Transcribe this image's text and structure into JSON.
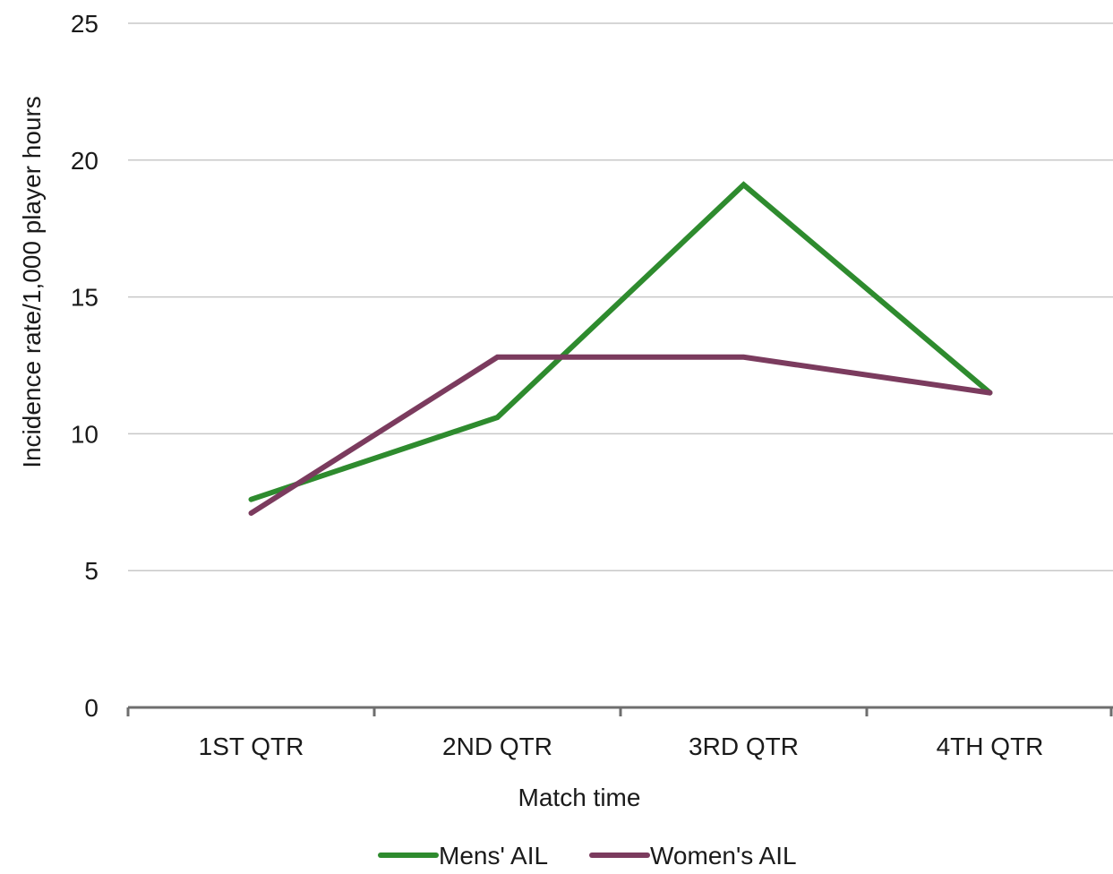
{
  "chart_data": {
    "type": "line",
    "title": "",
    "xlabel": "Match time",
    "ylabel": "Incidence rate/1,000 player hours",
    "categories": [
      "1ST QTR",
      "2ND QTR",
      "3RD QTR",
      "4TH QTR"
    ],
    "ylim": [
      0,
      25
    ],
    "yticks": [
      0,
      5,
      10,
      15,
      20,
      25
    ],
    "grid": true,
    "legend_position": "bottom",
    "series": [
      {
        "name": "Mens' AIL",
        "values": [
          7.6,
          10.6,
          19.1,
          11.5
        ],
        "color": "#2e8b2e"
      },
      {
        "name": "Women's AIL",
        "values": [
          7.1,
          12.8,
          12.8,
          11.5
        ],
        "color": "#7b3b5e"
      }
    ],
    "colors": {
      "gridline": "#c8c8c8",
      "axis": "#6e6e6e"
    }
  }
}
